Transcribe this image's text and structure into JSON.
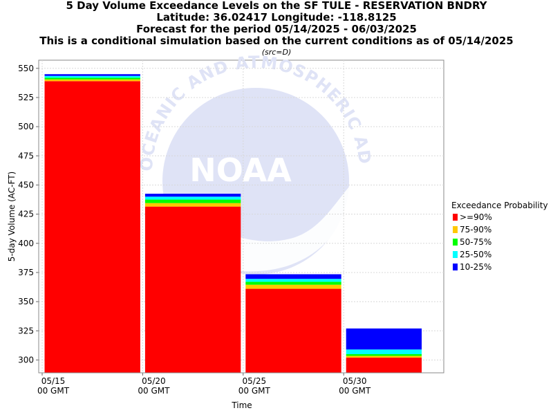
{
  "titles": {
    "line1": "5 Day Volume Exceedance Levels on the SF TULE - RESERVATION BNDRY",
    "line2": "Latitude: 36.02417 Longitude: -118.8125",
    "line3": "Forecast for the period 05/14/2025 - 06/03/2025",
    "line4": "This is a conditional simulation based on the current conditions as of 05/14/2025",
    "source_note": "(src=D)"
  },
  "watermark": {
    "ring_text": "OCEANIC AND ATMOSPHERIC ADMINISTRATION",
    "logo_text": "NOAA"
  },
  "chart_data": {
    "type": "bar",
    "subtype": "stacked-exceedance",
    "xlabel": "Time",
    "ylabel": "5-day Volume (AC-FT)",
    "ylim": [
      289,
      557
    ],
    "yticks": [
      300,
      325,
      350,
      375,
      400,
      425,
      450,
      475,
      500,
      525,
      550
    ],
    "x_ticks": [
      {
        "date": "05/15",
        "line1": "05/15",
        "line2": "00 GMT"
      },
      {
        "date": "05/20",
        "line1": "05/20",
        "line2": "00 GMT"
      },
      {
        "date": "05/25",
        "line1": "05/25",
        "line2": "00 GMT"
      },
      {
        "date": "05/30",
        "line1": "05/30",
        "line2": "00 GMT"
      }
    ],
    "grid": true,
    "legend_title": "Exceedance Probability",
    "legend_position": "right",
    "series": [
      {
        "name": ">=90%",
        "color": "#ff0000"
      },
      {
        "name": "75-90%",
        "color": "#ffc800"
      },
      {
        "name": "50-75%",
        "color": "#00ff00"
      },
      {
        "name": "25-50%",
        "color": "#00ffff"
      },
      {
        "name": "10-25%",
        "color": "#0000ff"
      }
    ],
    "bars": [
      {
        "start": "05/15",
        "end": "05/20",
        "levels": [
          539,
          540.5,
          542,
          543.5,
          545
        ]
      },
      {
        "start": "05/20",
        "end": "05/25",
        "levels": [
          431.5,
          434.5,
          437.5,
          440,
          442.5
        ]
      },
      {
        "start": "05/25",
        "end": "05/30",
        "levels": [
          361,
          364.5,
          367,
          369.5,
          373.5
        ]
      },
      {
        "start": "05/30",
        "end": "06/03",
        "levels": [
          302,
          303.5,
          305,
          309,
          327
        ]
      }
    ]
  }
}
